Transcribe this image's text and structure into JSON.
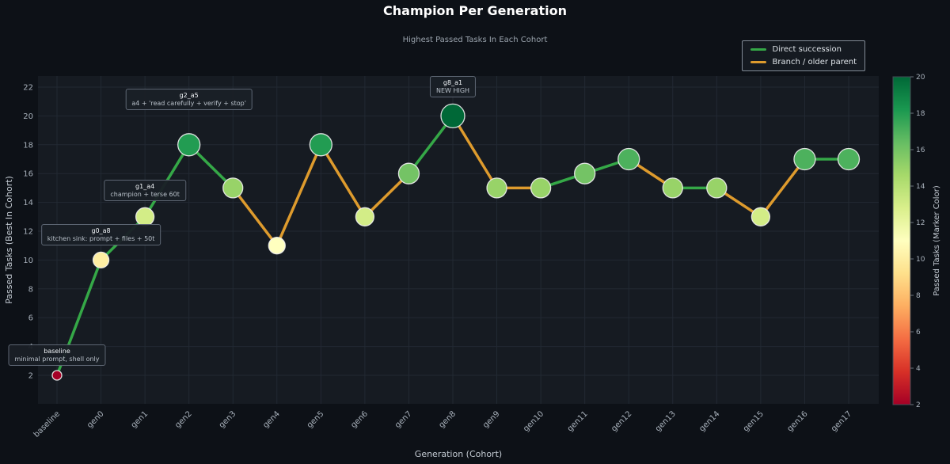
{
  "title": "Champion Per Generation",
  "subtitle": "Highest Passed Tasks In Each Cohort",
  "page": {
    "background": "#0d1117",
    "plot_background": "#161b22",
    "grid_color": "#222933",
    "tick_label_color": "#a8b1bb",
    "axis_label_color": "#c3cad2"
  },
  "legend": {
    "items": [
      {
        "label": "Direct succession",
        "color": "#35a847"
      },
      {
        "label": "Branch / older parent",
        "color": "#de9b2d"
      }
    ]
  },
  "chart_data": {
    "type": "line",
    "title": "Champion Per Generation",
    "subtitle": "Highest Passed Tasks In Each Cohort",
    "xlabel": "Generation (Cohort)",
    "ylabel": "Passed Tasks (Best In Cohort)",
    "x": [
      "baseline",
      "gen0",
      "gen1",
      "gen2",
      "gen3",
      "gen4",
      "gen5",
      "gen6",
      "gen7",
      "gen8",
      "gen9",
      "gen10",
      "gen11",
      "gen12",
      "gen13",
      "gen14",
      "gen15",
      "gen16",
      "gen17"
    ],
    "values": [
      2,
      10,
      13,
      18,
      15,
      11,
      18,
      13,
      16,
      20,
      15,
      15,
      16,
      17,
      15,
      15,
      13,
      17,
      17
    ],
    "segments": [
      "direct",
      "direct",
      "direct",
      "direct",
      "branch",
      "branch",
      "branch",
      "branch",
      "direct",
      "branch",
      "branch",
      "direct",
      "direct",
      "branch",
      "direct",
      "branch",
      "branch",
      "direct"
    ],
    "segment_colors": {
      "direct": "#35a847",
      "branch": "#de9b2d"
    },
    "yticks": [
      2,
      4,
      6,
      8,
      10,
      12,
      14,
      16,
      18,
      20,
      22
    ],
    "grid": true,
    "legend_position": "top-right",
    "colormap": "RdYlGn",
    "colormap_stops": [
      "#a50026",
      "#d73027",
      "#f46d43",
      "#fdae61",
      "#fee08b",
      "#ffffbf",
      "#d9ef8b",
      "#a6d96a",
      "#66bd63",
      "#1a9850",
      "#006837"
    ],
    "colorbar": {
      "label": "Passed Tasks (Marker Color)",
      "min": 2,
      "max": 20,
      "ticks": [
        2,
        4,
        6,
        8,
        10,
        12,
        14,
        16,
        18,
        20
      ]
    },
    "annotations": [
      {
        "target": "baseline",
        "line1": "baseline",
        "line2": "minimal prompt, shell only",
        "gap": 6
      },
      {
        "target": "gen0",
        "line1": "g0_a8",
        "line2": "kitchen sink: prompt + files + 50t",
        "gap": 8
      },
      {
        "target": "gen1",
        "line1": "g1_a4",
        "line2": "champion + terse 60t",
        "gap": 8
      },
      {
        "target": "gen2",
        "line1": "g2_a5",
        "line2": "a4 + 'read carefully + verify + stop'",
        "gap": 30
      },
      {
        "target": "gen8",
        "line1": "g8_a1",
        "line2": "NEW HIGH",
        "gap": 8
      }
    ]
  }
}
